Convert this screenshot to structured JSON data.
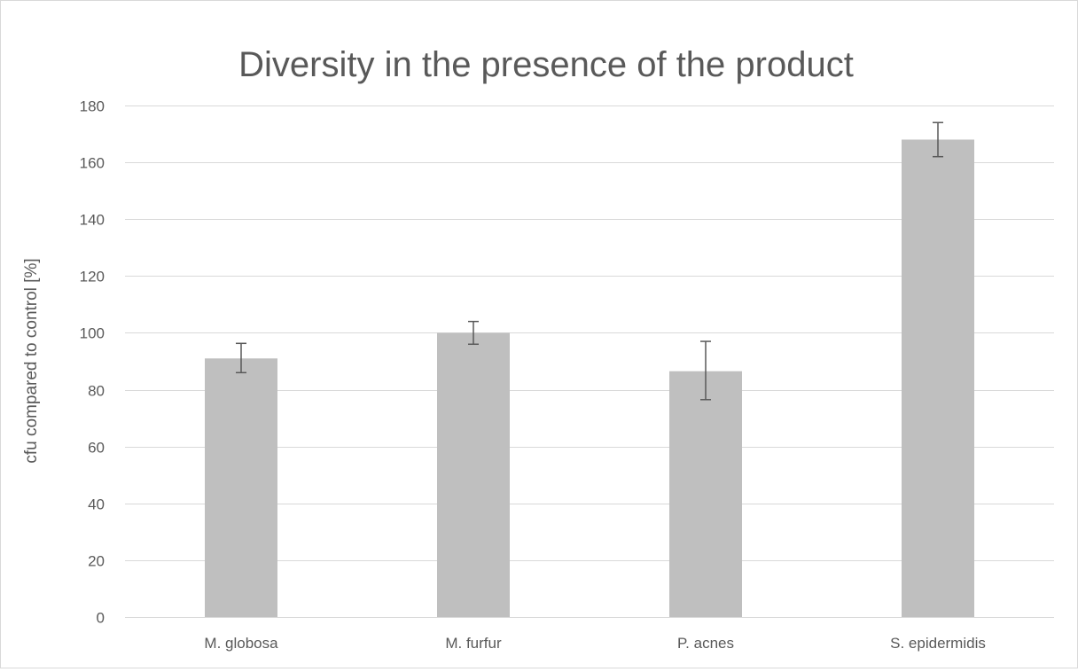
{
  "chart_data": {
    "type": "bar",
    "title": "Diversity in the presence of the product",
    "xlabel": "",
    "ylabel": "cfu compared to control [%]",
    "categories": [
      "M. globosa",
      "M. furfur",
      "P. acnes",
      "S. epidermidis"
    ],
    "values": [
      91,
      100,
      86.5,
      168
    ],
    "error_low": [
      86,
      96,
      76.5,
      162
    ],
    "error_high": [
      96.3,
      104,
      97,
      174
    ],
    "ylim": [
      0,
      180
    ],
    "yticks": [
      0,
      20,
      40,
      60,
      80,
      100,
      120,
      140,
      160,
      180
    ],
    "ytick_labels": [
      "0",
      "20",
      "40",
      "60",
      "80",
      "100",
      "120",
      "140",
      "160",
      "180"
    ],
    "grid": true,
    "legend": "none",
    "bar_color": "#bfbfbf",
    "error_bar_color": "#595959",
    "grid_color": "#d9d9d9",
    "text_color": "#595959"
  }
}
